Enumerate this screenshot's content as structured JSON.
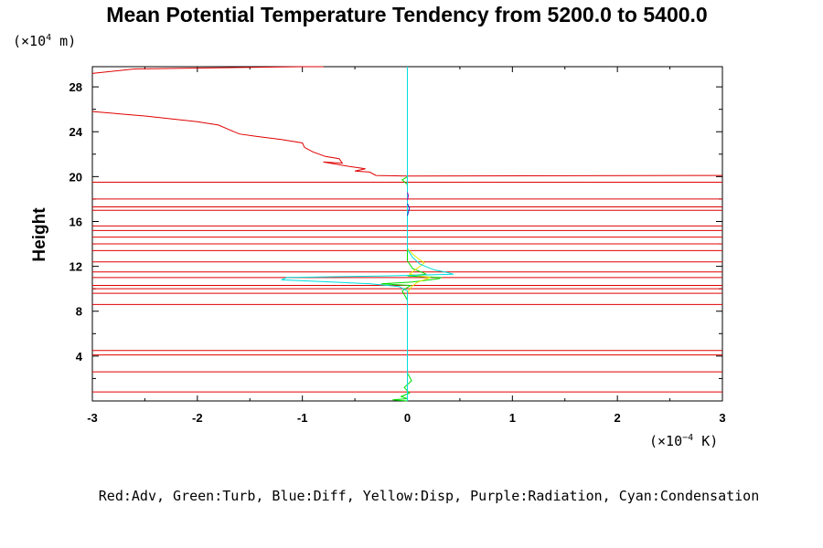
{
  "chart_data": {
    "type": "line",
    "title": "Mean Potential Temperature Tendency from 5200.0 to 5400.0",
    "y_unit": {
      "prefix": "(×10",
      "exp": "4",
      "suffix": " m)"
    },
    "x_unit": {
      "prefix": "(×10",
      "exp": "−4",
      "suffix": " K)"
    },
    "ylabel": "Height",
    "xlabel": "",
    "xlim": [
      -3,
      3
    ],
    "ylim": [
      0,
      29.8
    ],
    "x_ticks": [
      -3,
      -2,
      -1,
      0,
      1,
      2,
      3
    ],
    "x_tick_labels": [
      "-3",
      "-2",
      "-1",
      "0",
      "1",
      "2",
      "3"
    ],
    "y_ticks": [
      4,
      8,
      12,
      16,
      20,
      24,
      28
    ],
    "y_tick_labels": [
      "4",
      "8",
      "12",
      "16",
      "20",
      "24",
      "28"
    ],
    "legend_text": "Red:Adv, Green:Turb, Blue:Diff, Yellow:Disp, Purple:Radiation, Cyan:Condensation",
    "series": [
      {
        "name": "Adv",
        "color": "#e00000",
        "type": "line",
        "points": [
          [
            -3,
            29.2
          ],
          [
            -2.6,
            29.6
          ],
          [
            -1,
            29.8
          ],
          [
            -0.8,
            29.8
          ],
          [
            -3,
            25.8
          ],
          [
            -2.5,
            25.4
          ],
          [
            -2.2,
            25.1
          ],
          [
            -2.0,
            24.9
          ],
          [
            -1.8,
            24.6
          ],
          [
            -1.7,
            24.2
          ],
          [
            -1.6,
            23.8
          ],
          [
            -1.45,
            23.6
          ],
          [
            -1.2,
            23.3
          ],
          [
            -1.0,
            23.0
          ],
          [
            -0.98,
            22.6
          ],
          [
            -0.9,
            22.2
          ],
          [
            -0.78,
            21.8
          ],
          [
            -0.65,
            21.6
          ],
          [
            -0.62,
            21.2
          ],
          [
            -0.8,
            21.3
          ],
          [
            -0.55,
            20.9
          ],
          [
            -0.4,
            20.7
          ],
          [
            -0.5,
            20.5
          ],
          [
            -0.36,
            20.4
          ],
          [
            -0.3,
            20.1
          ],
          [
            0.0,
            20.05
          ],
          [
            3,
            20.1
          ]
        ],
        "horizontal_levels": [
          19.5,
          18.0,
          17.3,
          17.0,
          15.6,
          15.2,
          14.6,
          14.0,
          13.4,
          12.4,
          11.5,
          11.0,
          10.3,
          10.0,
          9.6,
          8.6,
          4.5,
          4.1,
          2.6,
          0.8
        ]
      },
      {
        "name": "Turb",
        "color": "#00dd00",
        "type": "line",
        "points": [
          [
            0.0,
            0.0
          ],
          [
            -0.14,
            0.1
          ],
          [
            0.0,
            0.2
          ],
          [
            -0.06,
            0.4
          ],
          [
            0.02,
            0.7
          ],
          [
            -0.03,
            1.2
          ],
          [
            0.04,
            1.8
          ],
          [
            0.0,
            2.5
          ],
          [
            0.0,
            9.0
          ],
          [
            -0.05,
            9.8
          ],
          [
            0.03,
            10.3
          ],
          [
            -0.25,
            10.45
          ],
          [
            0.05,
            10.6
          ],
          [
            0.3,
            10.9
          ],
          [
            0.32,
            11.0
          ],
          [
            0.0,
            11.15
          ],
          [
            0.18,
            11.3
          ],
          [
            0.05,
            11.8
          ],
          [
            0.0,
            12.5
          ],
          [
            0.0,
            19.3
          ],
          [
            -0.05,
            19.7
          ],
          [
            0.0,
            20.0
          ]
        ]
      },
      {
        "name": "Disp",
        "color": "#e6e600",
        "type": "line",
        "points": [
          [
            0.0,
            9.6
          ],
          [
            0.04,
            10.2
          ],
          [
            0.1,
            10.6
          ],
          [
            0.22,
            11.0
          ],
          [
            0.02,
            11.3
          ],
          [
            0.16,
            12.3
          ],
          [
            0.06,
            13.0
          ],
          [
            0.0,
            13.6
          ]
        ]
      },
      {
        "name": "Condensation",
        "color": "#00dddd",
        "type": "line",
        "points": [
          [
            0.0,
            0.0
          ],
          [
            0.0,
            9.8
          ],
          [
            -0.08,
            10.2
          ],
          [
            -0.35,
            10.45
          ],
          [
            -1.2,
            10.8
          ],
          [
            -1.15,
            11.0
          ],
          [
            -0.2,
            11.15
          ],
          [
            0.44,
            11.3
          ],
          [
            0.38,
            11.45
          ],
          [
            0.25,
            11.7
          ],
          [
            0.12,
            12.2
          ],
          [
            0.05,
            12.8
          ],
          [
            0.0,
            13.5
          ],
          [
            0.0,
            29.8
          ]
        ]
      },
      {
        "name": "Diff",
        "color": "#2222cc",
        "type": "line",
        "points": [
          [
            0.0,
            16.5
          ],
          [
            0.02,
            17.2
          ],
          [
            0.0,
            17.6
          ]
        ]
      },
      {
        "name": "Radiation",
        "color": "#aa00aa",
        "type": "line",
        "points": [
          [
            0.0,
            17.9
          ],
          [
            0.01,
            18.3
          ],
          [
            0.0,
            18.6
          ]
        ]
      }
    ]
  }
}
